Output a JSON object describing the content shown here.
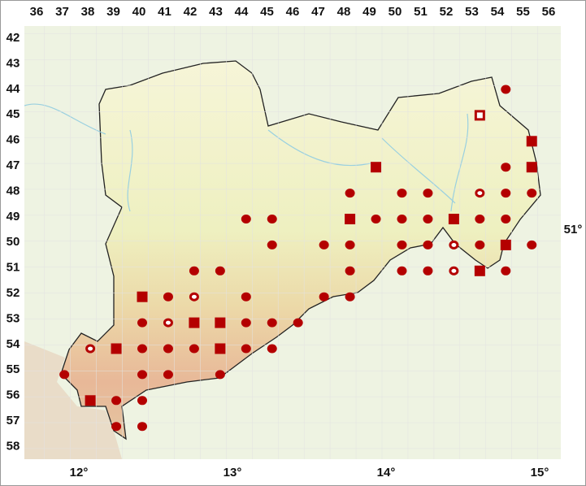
{
  "map": {
    "columns": [
      "36",
      "37",
      "38",
      "39",
      "40",
      "41",
      "42",
      "43",
      "44",
      "45",
      "46",
      "47",
      "48",
      "49",
      "50",
      "51",
      "52",
      "53",
      "54",
      "55",
      "56"
    ],
    "rows": [
      "42",
      "43",
      "44",
      "45",
      "46",
      "47",
      "48",
      "49",
      "50",
      "51",
      "52",
      "53",
      "54",
      "55",
      "56",
      "57",
      "58"
    ],
    "longitudes": [
      "12°",
      "13°",
      "14°",
      "15°"
    ],
    "latitude": "51°",
    "marker_color": "#b40000",
    "markers": [
      {
        "col": 54,
        "row": 44,
        "kind": "dot"
      },
      {
        "col": 53,
        "row": 45,
        "kind": "open-square"
      },
      {
        "col": 55,
        "row": 46,
        "kind": "square"
      },
      {
        "col": 49,
        "row": 47,
        "kind": "square"
      },
      {
        "col": 54,
        "row": 47,
        "kind": "dot"
      },
      {
        "col": 55,
        "row": 47,
        "kind": "square"
      },
      {
        "col": 48,
        "row": 48,
        "kind": "dot"
      },
      {
        "col": 50,
        "row": 48,
        "kind": "dot"
      },
      {
        "col": 51,
        "row": 48,
        "kind": "dot"
      },
      {
        "col": 53,
        "row": 48,
        "kind": "open-dot"
      },
      {
        "col": 54,
        "row": 48,
        "kind": "dot"
      },
      {
        "col": 55,
        "row": 48,
        "kind": "dot"
      },
      {
        "col": 44,
        "row": 49,
        "kind": "dot"
      },
      {
        "col": 45,
        "row": 49,
        "kind": "dot"
      },
      {
        "col": 48,
        "row": 49,
        "kind": "square"
      },
      {
        "col": 49,
        "row": 49,
        "kind": "dot"
      },
      {
        "col": 50,
        "row": 49,
        "kind": "dot"
      },
      {
        "col": 51,
        "row": 49,
        "kind": "dot"
      },
      {
        "col": 52,
        "row": 49,
        "kind": "square"
      },
      {
        "col": 53,
        "row": 49,
        "kind": "dot"
      },
      {
        "col": 54,
        "row": 49,
        "kind": "dot"
      },
      {
        "col": 45,
        "row": 50,
        "kind": "dot"
      },
      {
        "col": 47,
        "row": 50,
        "kind": "dot"
      },
      {
        "col": 48,
        "row": 50,
        "kind": "dot"
      },
      {
        "col": 50,
        "row": 50,
        "kind": "dot"
      },
      {
        "col": 51,
        "row": 50,
        "kind": "dot"
      },
      {
        "col": 52,
        "row": 50,
        "kind": "open-dot"
      },
      {
        "col": 53,
        "row": 50,
        "kind": "dot"
      },
      {
        "col": 54,
        "row": 50,
        "kind": "square"
      },
      {
        "col": 55,
        "row": 50,
        "kind": "dot"
      },
      {
        "col": 42,
        "row": 51,
        "kind": "dot"
      },
      {
        "col": 43,
        "row": 51,
        "kind": "dot"
      },
      {
        "col": 48,
        "row": 51,
        "kind": "dot"
      },
      {
        "col": 50,
        "row": 51,
        "kind": "dot"
      },
      {
        "col": 51,
        "row": 51,
        "kind": "dot"
      },
      {
        "col": 52,
        "row": 51,
        "kind": "open-dot"
      },
      {
        "col": 53,
        "row": 51,
        "kind": "square"
      },
      {
        "col": 54,
        "row": 51,
        "kind": "dot"
      },
      {
        "col": 40,
        "row": 52,
        "kind": "square"
      },
      {
        "col": 41,
        "row": 52,
        "kind": "dot"
      },
      {
        "col": 42,
        "row": 52,
        "kind": "open-dot"
      },
      {
        "col": 44,
        "row": 52,
        "kind": "dot"
      },
      {
        "col": 47,
        "row": 52,
        "kind": "dot"
      },
      {
        "col": 48,
        "row": 52,
        "kind": "dot"
      },
      {
        "col": 40,
        "row": 53,
        "kind": "dot"
      },
      {
        "col": 41,
        "row": 53,
        "kind": "open-dot"
      },
      {
        "col": 42,
        "row": 53,
        "kind": "square"
      },
      {
        "col": 43,
        "row": 53,
        "kind": "square"
      },
      {
        "col": 44,
        "row": 53,
        "kind": "dot"
      },
      {
        "col": 45,
        "row": 53,
        "kind": "dot"
      },
      {
        "col": 46,
        "row": 53,
        "kind": "dot"
      },
      {
        "col": 38,
        "row": 54,
        "kind": "open-dot"
      },
      {
        "col": 39,
        "row": 54,
        "kind": "square"
      },
      {
        "col": 40,
        "row": 54,
        "kind": "dot"
      },
      {
        "col": 41,
        "row": 54,
        "kind": "dot"
      },
      {
        "col": 42,
        "row": 54,
        "kind": "dot"
      },
      {
        "col": 43,
        "row": 54,
        "kind": "square"
      },
      {
        "col": 44,
        "row": 54,
        "kind": "dot"
      },
      {
        "col": 45,
        "row": 54,
        "kind": "dot"
      },
      {
        "col": 37,
        "row": 55,
        "kind": "dot"
      },
      {
        "col": 40,
        "row": 55,
        "kind": "dot"
      },
      {
        "col": 41,
        "row": 55,
        "kind": "dot"
      },
      {
        "col": 43,
        "row": 55,
        "kind": "dot"
      },
      {
        "col": 38,
        "row": 56,
        "kind": "square"
      },
      {
        "col": 39,
        "row": 56,
        "kind": "dot"
      },
      {
        "col": 40,
        "row": 56,
        "kind": "dot"
      },
      {
        "col": 39,
        "row": 57,
        "kind": "dot"
      },
      {
        "col": 40,
        "row": 57,
        "kind": "dot"
      }
    ]
  }
}
